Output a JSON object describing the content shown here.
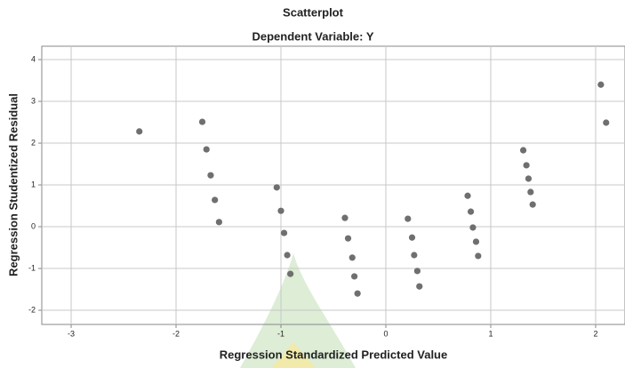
{
  "chart_data": {
    "type": "scatter",
    "title": "Scatterplot",
    "subtitle": "Dependent Variable: Y",
    "x_label": "Regression Standardized Predicted Value",
    "y_label": "Regression Studentized Residual",
    "x": [
      -2.35,
      -1.75,
      -1.71,
      -1.67,
      -1.63,
      -1.59,
      -1.04,
      -1.0,
      -0.97,
      -0.94,
      -0.91,
      -0.39,
      -0.36,
      -0.32,
      -0.3,
      -0.27,
      0.21,
      0.25,
      0.27,
      0.3,
      0.32,
      0.78,
      0.81,
      0.83,
      0.86,
      0.88,
      1.31,
      1.34,
      1.36,
      1.38,
      1.4,
      2.05,
      2.1
    ],
    "y": [
      2.28,
      2.51,
      1.85,
      1.23,
      0.64,
      0.11,
      0.94,
      0.38,
      -0.15,
      -0.68,
      -1.13,
      0.21,
      -0.28,
      -0.74,
      -1.19,
      -1.6,
      0.19,
      -0.26,
      -0.68,
      -1.06,
      -1.43,
      0.74,
      0.36,
      -0.02,
      -0.36,
      -0.7,
      1.83,
      1.47,
      1.15,
      0.83,
      0.53,
      3.4,
      2.49
    ],
    "color": "#6f6f6f",
    "xlim": [
      -3.28,
      2.28
    ],
    "ylim": [
      -2.34,
      4.32
    ],
    "xticks": [
      -3,
      -2,
      -1,
      0,
      1,
      2
    ],
    "yticks": [
      -2,
      -1,
      0,
      1,
      2,
      3,
      4
    ],
    "grid": true
  }
}
